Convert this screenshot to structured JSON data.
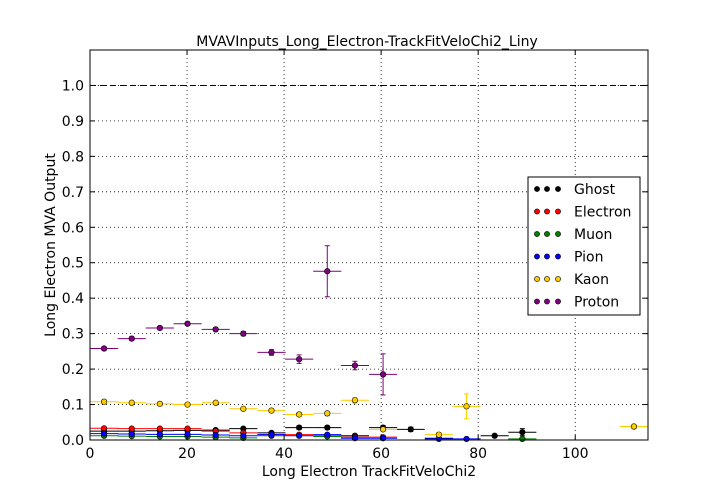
{
  "chart_data": {
    "type": "scatter",
    "title": "MVAVInputs_Long_Electron-TrackFitVeloChi2_Liny",
    "xlabel": "Long Electron TrackFitVeloChi2",
    "ylabel": "Long Electron MVA Output",
    "xlim": [
      0,
      115
    ],
    "ylim": [
      0,
      1.1
    ],
    "xticks": [
      0,
      20,
      40,
      60,
      80,
      100
    ],
    "xtick_labels": [
      "0",
      "20",
      "40",
      "60",
      "80",
      "100"
    ],
    "yticks": [
      0.0,
      0.1,
      0.2,
      0.3,
      0.4,
      0.5,
      0.6,
      0.7,
      0.8,
      0.9,
      1.0
    ],
    "ytick_labels": [
      "0.0",
      "0.1",
      "0.2",
      "0.3",
      "0.4",
      "0.5",
      "0.6",
      "0.7",
      "0.8",
      "0.9",
      "1.0"
    ],
    "grid": true,
    "reference_line_y": 1.0,
    "legend_position": "center-right",
    "series": [
      {
        "name": "Ghost",
        "color": "#000000",
        "points": [
          {
            "x": 2.9,
            "y": 0.025,
            "xerr": 2.9,
            "yerr": 0.003
          },
          {
            "x": 8.6,
            "y": 0.025,
            "xerr": 2.9,
            "yerr": 0.003
          },
          {
            "x": 14.4,
            "y": 0.026,
            "xerr": 2.9,
            "yerr": 0.003
          },
          {
            "x": 20.1,
            "y": 0.027,
            "xerr": 2.9,
            "yerr": 0.003
          },
          {
            "x": 25.9,
            "y": 0.028,
            "xerr": 2.9,
            "yerr": 0.003
          },
          {
            "x": 31.6,
            "y": 0.032,
            "xerr": 2.9,
            "yerr": 0.004
          },
          {
            "x": 37.4,
            "y": 0.02,
            "xerr": 2.9,
            "yerr": 0.004
          },
          {
            "x": 43.1,
            "y": 0.035,
            "xerr": 2.9,
            "yerr": 0.005
          },
          {
            "x": 48.9,
            "y": 0.035,
            "xerr": 2.9,
            "yerr": 0.005
          },
          {
            "x": 54.6,
            "y": 0.012,
            "xerr": 2.9,
            "yerr": 0.004
          },
          {
            "x": 60.4,
            "y": 0.035,
            "xerr": 2.9,
            "yerr": 0.006
          },
          {
            "x": 66.1,
            "y": 0.03,
            "xerr": 2.9,
            "yerr": 0.006
          },
          {
            "x": 71.9,
            "y": 0.005,
            "xerr": 2.9,
            "yerr": 0.003
          },
          {
            "x": 83.4,
            "y": 0.012,
            "xerr": 2.9,
            "yerr": 0.004
          },
          {
            "x": 89.1,
            "y": 0.022,
            "xerr": 2.9,
            "yerr": 0.01
          }
        ]
      },
      {
        "name": "Electron",
        "color": "#ff0000",
        "points": [
          {
            "x": 2.9,
            "y": 0.033,
            "xerr": 2.9,
            "yerr": 0.002
          },
          {
            "x": 8.6,
            "y": 0.032,
            "xerr": 2.9,
            "yerr": 0.002
          },
          {
            "x": 14.4,
            "y": 0.032,
            "xerr": 2.9,
            "yerr": 0.002
          },
          {
            "x": 20.1,
            "y": 0.032,
            "xerr": 2.9,
            "yerr": 0.002
          },
          {
            "x": 25.9,
            "y": 0.025,
            "xerr": 2.9,
            "yerr": 0.002
          },
          {
            "x": 31.6,
            "y": 0.02,
            "xerr": 2.9,
            "yerr": 0.002
          },
          {
            "x": 37.4,
            "y": 0.015,
            "xerr": 2.9,
            "yerr": 0.002
          },
          {
            "x": 43.1,
            "y": 0.015,
            "xerr": 2.9,
            "yerr": 0.002
          },
          {
            "x": 48.9,
            "y": 0.012,
            "xerr": 2.9,
            "yerr": 0.002
          },
          {
            "x": 54.6,
            "y": 0.008,
            "xerr": 2.9,
            "yerr": 0.002
          },
          {
            "x": 60.4,
            "y": 0.008,
            "xerr": 2.9,
            "yerr": 0.002
          }
        ]
      },
      {
        "name": "Muon",
        "color": "#008000",
        "points": [
          {
            "x": 2.9,
            "y": 0.012,
            "xerr": 2.9,
            "yerr": 0.002
          },
          {
            "x": 8.6,
            "y": 0.011,
            "xerr": 2.9,
            "yerr": 0.002
          },
          {
            "x": 14.4,
            "y": 0.01,
            "xerr": 2.9,
            "yerr": 0.002
          },
          {
            "x": 20.1,
            "y": 0.01,
            "xerr": 2.9,
            "yerr": 0.002
          },
          {
            "x": 25.9,
            "y": 0.008,
            "xerr": 2.9,
            "yerr": 0.002
          },
          {
            "x": 31.6,
            "y": 0.006,
            "xerr": 2.9,
            "yerr": 0.002
          },
          {
            "x": 37.4,
            "y": 0.012,
            "xerr": 2.9,
            "yerr": 0.002
          },
          {
            "x": 48.9,
            "y": 0.01,
            "xerr": 2.9,
            "yerr": 0.003
          },
          {
            "x": 89.1,
            "y": 0.003,
            "xerr": 2.9,
            "yerr": 0.002
          }
        ]
      },
      {
        "name": "Pion",
        "color": "#0000ff",
        "points": [
          {
            "x": 2.9,
            "y": 0.018,
            "xerr": 2.9,
            "yerr": 0.002
          },
          {
            "x": 8.6,
            "y": 0.017,
            "xerr": 2.9,
            "yerr": 0.002
          },
          {
            "x": 14.4,
            "y": 0.016,
            "xerr": 2.9,
            "yerr": 0.002
          },
          {
            "x": 20.1,
            "y": 0.016,
            "xerr": 2.9,
            "yerr": 0.002
          },
          {
            "x": 25.9,
            "y": 0.014,
            "xerr": 2.9,
            "yerr": 0.002
          },
          {
            "x": 31.6,
            "y": 0.012,
            "xerr": 2.9,
            "yerr": 0.002
          },
          {
            "x": 37.4,
            "y": 0.015,
            "xerr": 2.9,
            "yerr": 0.002
          },
          {
            "x": 43.1,
            "y": 0.012,
            "xerr": 2.9,
            "yerr": 0.002
          },
          {
            "x": 48.9,
            "y": 0.015,
            "xerr": 2.9,
            "yerr": 0.002
          },
          {
            "x": 54.6,
            "y": 0.005,
            "xerr": 2.9,
            "yerr": 0.002
          },
          {
            "x": 60.4,
            "y": 0.005,
            "xerr": 2.9,
            "yerr": 0.002
          },
          {
            "x": 71.9,
            "y": 0.003,
            "xerr": 2.9,
            "yerr": 0.002
          },
          {
            "x": 77.6,
            "y": 0.003,
            "xerr": 2.9,
            "yerr": 0.002
          }
        ]
      },
      {
        "name": "Kaon",
        "color": "#ffcc00",
        "points": [
          {
            "x": 2.9,
            "y": 0.108,
            "xerr": 2.9,
            "yerr": 0.004
          },
          {
            "x": 8.6,
            "y": 0.105,
            "xerr": 2.9,
            "yerr": 0.004
          },
          {
            "x": 14.4,
            "y": 0.102,
            "xerr": 2.9,
            "yerr": 0.004
          },
          {
            "x": 20.1,
            "y": 0.1,
            "xerr": 2.9,
            "yerr": 0.004
          },
          {
            "x": 25.9,
            "y": 0.105,
            "xerr": 2.9,
            "yerr": 0.004
          },
          {
            "x": 31.6,
            "y": 0.088,
            "xerr": 2.9,
            "yerr": 0.004
          },
          {
            "x": 37.4,
            "y": 0.083,
            "xerr": 2.9,
            "yerr": 0.005
          },
          {
            "x": 43.1,
            "y": 0.072,
            "xerr": 2.9,
            "yerr": 0.005
          },
          {
            "x": 48.9,
            "y": 0.075,
            "xerr": 2.9,
            "yerr": 0.006
          },
          {
            "x": 54.6,
            "y": 0.112,
            "xerr": 2.9,
            "yerr": 0.008
          },
          {
            "x": 60.4,
            "y": 0.03,
            "xerr": 2.9,
            "yerr": 0.006
          },
          {
            "x": 71.9,
            "y": 0.015,
            "xerr": 2.9,
            "yerr": 0.006
          },
          {
            "x": 77.6,
            "y": 0.095,
            "xerr": 2.9,
            "yerr": 0.035
          },
          {
            "x": 112.1,
            "y": 0.038,
            "xerr": 2.9,
            "yerr": 0.005
          }
        ]
      },
      {
        "name": "Proton",
        "color": "#800080",
        "points": [
          {
            "x": 2.9,
            "y": 0.258,
            "xerr": 2.9,
            "yerr": 0.005
          },
          {
            "x": 8.6,
            "y": 0.286,
            "xerr": 2.9,
            "yerr": 0.005
          },
          {
            "x": 14.4,
            "y": 0.316,
            "xerr": 2.9,
            "yerr": 0.005
          },
          {
            "x": 20.1,
            "y": 0.328,
            "xerr": 2.9,
            "yerr": 0.005
          },
          {
            "x": 25.9,
            "y": 0.312,
            "xerr": 2.9,
            "yerr": 0.005
          },
          {
            "x": 31.6,
            "y": 0.3,
            "xerr": 2.9,
            "yerr": 0.006
          },
          {
            "x": 37.4,
            "y": 0.247,
            "xerr": 2.9,
            "yerr": 0.008
          },
          {
            "x": 43.1,
            "y": 0.228,
            "xerr": 2.9,
            "yerr": 0.012
          },
          {
            "x": 48.9,
            "y": 0.476,
            "xerr": 2.9,
            "yerr": 0.072
          },
          {
            "x": 54.6,
            "y": 0.21,
            "xerr": 2.9,
            "yerr": 0.012
          },
          {
            "x": 60.4,
            "y": 0.185,
            "xerr": 2.9,
            "yerr": 0.058
          }
        ]
      }
    ]
  }
}
